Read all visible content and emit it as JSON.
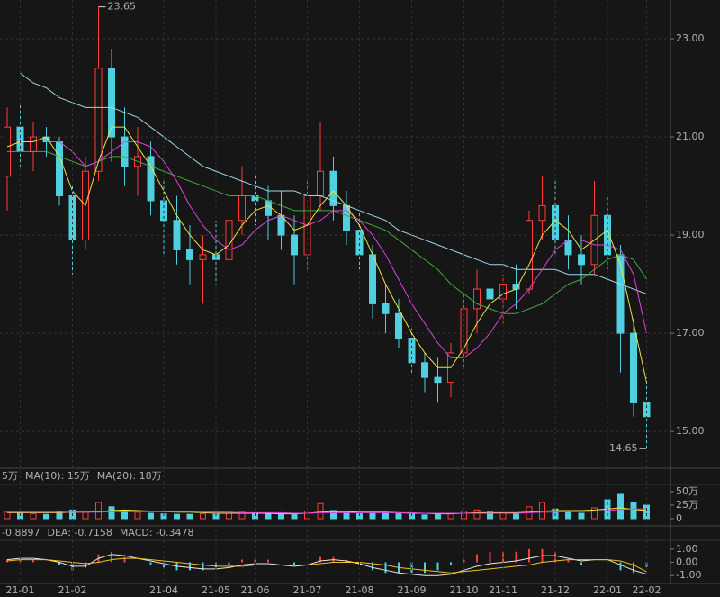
{
  "chart_data": [
    {
      "type": "candlestick",
      "open": [
        20.2,
        21.2,
        20.7,
        21.0,
        20.9,
        19.8,
        18.9,
        20.3,
        22.4,
        21.0,
        20.4,
        20.6,
        19.7,
        19.3,
        18.7,
        18.5,
        18.6,
        18.5,
        19.3,
        19.8,
        19.7,
        19.4,
        19.0,
        18.6,
        19.8,
        20.3,
        19.6,
        19.1,
        18.6,
        17.6,
        17.4,
        16.9,
        16.4,
        16.1,
        16.0,
        16.6,
        17.5,
        17.9,
        17.7,
        18.0,
        17.9,
        19.3,
        19.6,
        18.9,
        18.6,
        18.4,
        19.4,
        18.6,
        17.0,
        15.6
      ],
      "high": [
        21.6,
        21.7,
        21.3,
        21.2,
        21.0,
        20.0,
        20.6,
        23.65,
        22.8,
        21.6,
        21.2,
        20.9,
        20.1,
        19.8,
        19.2,
        19.0,
        19.3,
        19.5,
        20.4,
        20.2,
        20.0,
        19.9,
        19.4,
        20.1,
        21.3,
        20.6,
        19.9,
        19.5,
        18.8,
        18.0,
        17.7,
        17.1,
        16.6,
        16.5,
        16.8,
        17.8,
        18.3,
        18.6,
        18.2,
        18.4,
        19.5,
        20.2,
        20.1,
        19.4,
        19.0,
        20.1,
        19.8,
        18.8,
        17.3,
        16.1
      ],
      "low": [
        19.5,
        20.4,
        20.3,
        20.6,
        19.6,
        18.2,
        18.7,
        20.1,
        20.5,
        20.0,
        19.8,
        19.4,
        18.6,
        18.4,
        18.0,
        17.6,
        18.0,
        18.2,
        19.0,
        19.2,
        18.9,
        18.7,
        18.0,
        18.3,
        19.5,
        19.3,
        18.8,
        18.3,
        17.3,
        17.0,
        16.7,
        16.2,
        15.8,
        15.6,
        15.7,
        16.3,
        17.0,
        17.3,
        17.2,
        17.5,
        17.8,
        18.9,
        18.6,
        18.3,
        18.0,
        18.2,
        18.3,
        16.2,
        15.3,
        14.65
      ],
      "close": [
        21.2,
        20.7,
        21.0,
        20.9,
        19.8,
        18.9,
        20.3,
        22.4,
        21.0,
        20.4,
        20.6,
        19.7,
        19.3,
        18.7,
        18.5,
        18.6,
        18.5,
        19.3,
        19.8,
        19.7,
        19.4,
        19.0,
        18.6,
        19.8,
        20.3,
        19.6,
        19.1,
        18.6,
        17.6,
        17.4,
        16.9,
        16.4,
        16.1,
        16.0,
        16.6,
        17.5,
        17.9,
        17.7,
        18.0,
        17.9,
        19.3,
        19.6,
        18.9,
        18.6,
        18.4,
        19.4,
        18.6,
        17.0,
        15.6,
        15.3
      ],
      "up_color": "#ff3b3b",
      "down_color": "#4fd0e0",
      "lines": [
        {
          "color": "#9ad8ea",
          "values": [
            null,
            22.3,
            22.1,
            22.0,
            21.8,
            21.7,
            21.6,
            21.6,
            21.6,
            21.5,
            21.4,
            21.2,
            21.0,
            20.8,
            20.6,
            20.4,
            20.3,
            20.2,
            20.1,
            20.0,
            19.9,
            19.9,
            19.9,
            19.8,
            19.8,
            19.7,
            19.6,
            19.5,
            19.4,
            19.3,
            19.1,
            19.0,
            18.9,
            18.8,
            18.7,
            18.6,
            18.5,
            18.4,
            18.4,
            18.3,
            18.3,
            18.3,
            18.3,
            18.2,
            18.2,
            18.2,
            18.1,
            18.0,
            17.9,
            17.8
          ]
        },
        {
          "color": "#3fa83f",
          "values": [
            20.7,
            20.7,
            20.7,
            20.7,
            20.6,
            20.5,
            20.4,
            20.5,
            20.6,
            20.6,
            20.5,
            20.4,
            20.3,
            20.2,
            20.1,
            20.0,
            19.9,
            19.8,
            19.8,
            19.8,
            19.7,
            19.6,
            19.5,
            19.5,
            19.5,
            19.5,
            19.4,
            19.3,
            19.2,
            19.1,
            18.9,
            18.7,
            18.5,
            18.3,
            18.0,
            17.8,
            17.6,
            17.5,
            17.4,
            17.4,
            17.5,
            17.6,
            17.8,
            18.0,
            18.1,
            18.3,
            18.5,
            18.6,
            18.5,
            18.1
          ]
        },
        {
          "color": "#e040e0",
          "values": [
            null,
            null,
            null,
            20.9,
            20.9,
            20.7,
            20.4,
            20.5,
            20.7,
            20.9,
            20.9,
            20.8,
            20.5,
            20.1,
            19.6,
            19.2,
            18.9,
            18.7,
            18.8,
            19.1,
            19.3,
            19.4,
            19.3,
            19.2,
            19.3,
            19.5,
            19.5,
            19.3,
            19.0,
            18.6,
            18.1,
            17.6,
            17.2,
            16.8,
            16.5,
            16.5,
            16.7,
            17.0,
            17.4,
            17.6,
            17.9,
            18.3,
            18.7,
            18.9,
            18.9,
            18.8,
            18.8,
            18.7,
            18.2,
            17.0
          ]
        },
        {
          "color": "#f0e040",
          "values": [
            20.8,
            20.9,
            20.9,
            21.0,
            20.6,
            19.9,
            19.6,
            20.5,
            21.2,
            21.2,
            20.8,
            20.4,
            19.9,
            19.4,
            19.0,
            18.7,
            18.6,
            18.8,
            19.2,
            19.5,
            19.6,
            19.4,
            19.1,
            19.2,
            19.6,
            19.9,
            19.6,
            19.2,
            18.6,
            18.0,
            17.5,
            17.0,
            16.6,
            16.3,
            16.3,
            16.7,
            17.2,
            17.6,
            17.8,
            17.9,
            18.4,
            19.0,
            19.3,
            19.1,
            18.7,
            18.9,
            19.1,
            18.4,
            17.2,
            16.0
          ]
        }
      ],
      "ylim": [
        14.25,
        23.79
      ],
      "yticks": [
        {
          "value": 15,
          "label": "15.00"
        },
        {
          "value": 17,
          "label": "17.00"
        },
        {
          "value": 19,
          "label": "19.00"
        },
        {
          "value": 21,
          "label": "21.00"
        },
        {
          "value": 23,
          "label": "23.00"
        }
      ],
      "grid": true,
      "annotations": [
        {
          "text": "23.65",
          "value": 23.65,
          "color": "#ff4040"
        },
        {
          "text": "14.65",
          "value": 14.65,
          "color": "#40d040"
        }
      ]
    },
    {
      "type": "bar",
      "title": "5万",
      "values": [
        12,
        10,
        9,
        8,
        14,
        16,
        12,
        30,
        22,
        14,
        12,
        10,
        9,
        8,
        8,
        9,
        8,
        10,
        12,
        10,
        9,
        8,
        9,
        14,
        28,
        15,
        10,
        9,
        11,
        10,
        9,
        8,
        7,
        8,
        10,
        14,
        16,
        12,
        10,
        9,
        22,
        30,
        18,
        12,
        10,
        20,
        35,
        45,
        30,
        25
      ],
      "series": [
        {
          "name": "MA(10): 15万",
          "color": "#f0e040",
          "values": [
            11,
            11,
            11,
            11,
            11,
            12,
            12,
            13,
            15,
            16,
            15,
            14,
            13,
            12,
            12,
            11,
            10,
            10,
            10,
            10,
            10,
            9,
            9,
            10,
            12,
            13,
            13,
            12,
            12,
            12,
            11,
            10,
            10,
            9,
            9,
            10,
            11,
            11,
            11,
            11,
            12,
            14,
            15,
            15,
            15,
            16,
            18,
            20,
            17,
            15
          ]
        },
        {
          "name": "MA(20): 18万",
          "color": "#e040e0",
          "values": [
            12,
            12,
            12,
            12,
            12,
            12,
            12,
            12,
            13,
            13,
            13,
            13,
            13,
            13,
            13,
            12,
            12,
            12,
            11,
            11,
            11,
            11,
            10,
            10,
            11,
            11,
            11,
            11,
            11,
            11,
            11,
            11,
            10,
            10,
            10,
            10,
            10,
            10,
            10,
            10,
            11,
            12,
            12,
            13,
            13,
            14,
            15,
            17,
            18,
            18
          ]
        }
      ],
      "ylim": [
        -10,
        60
      ],
      "yticks": [
        {
          "value": 50,
          "label": "50万"
        },
        {
          "value": 25,
          "label": "25万"
        },
        0
      ]
    },
    {
      "type": "macd",
      "series": [
        {
          "name": "-0.8897",
          "color": "#e8e8e8",
          "values": [
            0.2,
            0.3,
            0.3,
            0.2,
            0.0,
            -0.3,
            -0.3,
            0.3,
            0.6,
            0.5,
            0.3,
            0.1,
            -0.1,
            -0.3,
            -0.4,
            -0.5,
            -0.5,
            -0.4,
            -0.2,
            -0.1,
            -0.1,
            -0.2,
            -0.3,
            -0.2,
            0.1,
            0.2,
            0.1,
            -0.1,
            -0.4,
            -0.6,
            -0.8,
            -0.9,
            -1.0,
            -1.0,
            -0.9,
            -0.6,
            -0.3,
            -0.1,
            0.0,
            0.1,
            0.3,
            0.5,
            0.5,
            0.3,
            0.1,
            0.2,
            0.2,
            -0.2,
            -0.6,
            -0.8897
          ]
        },
        {
          "name": "DEA: -0.7158",
          "color": "#f0c020",
          "values": [
            0.1,
            0.2,
            0.2,
            0.2,
            0.1,
            0.0,
            -0.1,
            0.0,
            0.2,
            0.3,
            0.3,
            0.2,
            0.1,
            0.0,
            -0.1,
            -0.2,
            -0.3,
            -0.3,
            -0.3,
            -0.2,
            -0.2,
            -0.2,
            -0.2,
            -0.2,
            -0.1,
            0.0,
            0.0,
            0.0,
            -0.1,
            -0.2,
            -0.4,
            -0.5,
            -0.6,
            -0.7,
            -0.8,
            -0.7,
            -0.6,
            -0.5,
            -0.4,
            -0.3,
            -0.2,
            0.0,
            0.1,
            0.2,
            0.2,
            0.2,
            0.2,
            0.1,
            -0.2,
            -0.7158
          ]
        }
      ],
      "histogram": {
        "name": "MACD: -0.3478",
        "color": "#e8e8e8",
        "up_color": "#ff3b3b",
        "down_color": "#4fd0e0",
        "values": [
          0.2,
          0.2,
          0.2,
          0.0,
          -0.2,
          -0.6,
          -0.4,
          0.6,
          0.8,
          0.4,
          0.0,
          -0.2,
          -0.4,
          -0.6,
          -0.6,
          -0.6,
          -0.4,
          -0.2,
          0.2,
          0.2,
          0.2,
          0.0,
          -0.2,
          0.0,
          0.4,
          0.4,
          0.2,
          -0.2,
          -0.6,
          -0.8,
          -0.8,
          -0.8,
          -0.8,
          -0.6,
          -0.2,
          0.2,
          0.6,
          0.8,
          0.8,
          0.8,
          1.0,
          1.0,
          0.8,
          0.2,
          -0.2,
          0.0,
          0.0,
          -0.6,
          -0.8,
          -0.3478
        ]
      },
      "ylim": [
        -1.6,
        1.67
      ],
      "yticks": [
        {
          "value": 1,
          "label": "1.00"
        },
        {
          "value": 0,
          "label": "0.00"
        },
        {
          "value": -1,
          "label": "-1.00"
        }
      ],
      "categories": [
        null,
        "21-01",
        null,
        null,
        null,
        "21-02",
        null,
        null,
        null,
        null,
        null,
        null,
        "21-04",
        null,
        null,
        null,
        "21-05",
        null,
        null,
        "21-06",
        null,
        null,
        null,
        "21-07",
        null,
        null,
        null,
        "21-08",
        null,
        null,
        null,
        "21-09",
        null,
        null,
        null,
        "21-10",
        null,
        null,
        "21-11",
        null,
        null,
        null,
        "21-12",
        null,
        null,
        null,
        "22-01",
        null,
        null,
        "22-02"
      ]
    }
  ]
}
